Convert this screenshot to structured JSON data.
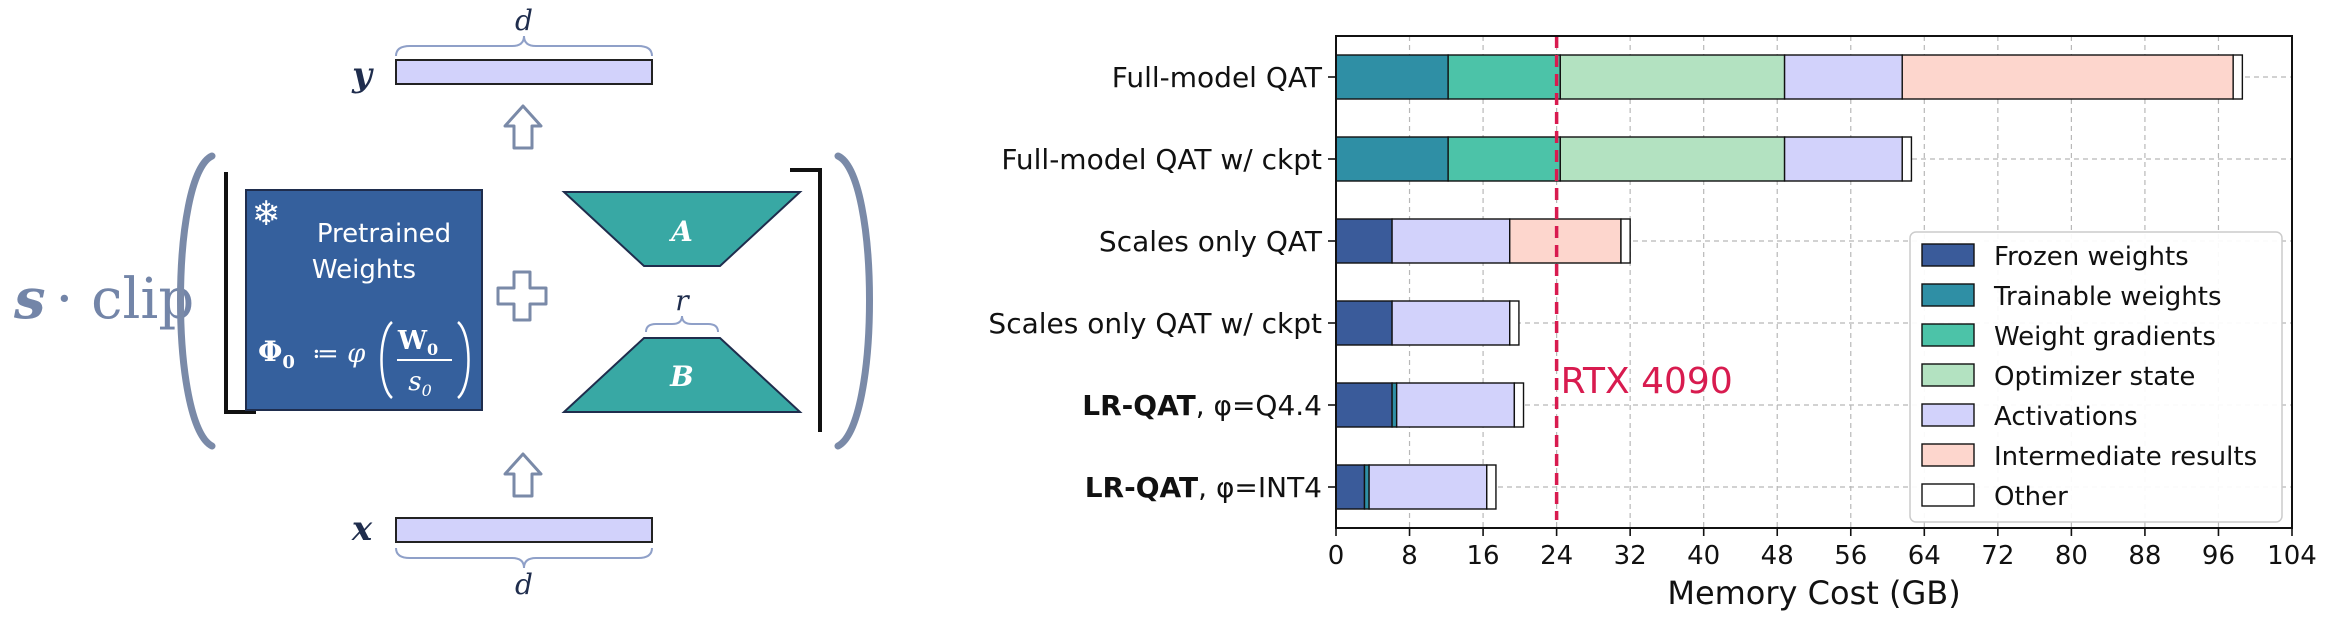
{
  "diagram": {
    "output_label": "y",
    "input_label": "x",
    "dim_top": "d",
    "dim_bottom": "d",
    "rank_label": "r",
    "scale_prefix_s": "s",
    "scale_prefix_rest": "· clip",
    "frozen_icon": "❄",
    "pretrained_line1": "Pretrained",
    "pretrained_line2": "Weights",
    "phi_sym": "Φ",
    "phi_sub": "0",
    "assign": "≔ φ",
    "frac_num": "W",
    "frac_num_sub": "0",
    "frac_den": "s",
    "frac_den_sub": "0",
    "adapter_a": "A",
    "adapter_b": "B",
    "plus_icon": "plus-icon",
    "arrow_icon": "up-arrow-icon"
  },
  "chart_data": {
    "type": "bar",
    "orientation": "horizontal",
    "stacked": true,
    "xlabel": "Memory Cost (GB)",
    "xlim": [
      0,
      104
    ],
    "xticks": [
      0,
      8,
      16,
      24,
      32,
      40,
      48,
      56,
      64,
      72,
      80,
      88,
      96,
      104
    ],
    "grid": true,
    "legend_position": "right",
    "categories": [
      {
        "bold": "",
        "text": "Full-model QAT"
      },
      {
        "bold": "",
        "text": "Full-model QAT w/ ckpt"
      },
      {
        "bold": "",
        "text": "Scales only QAT"
      },
      {
        "bold": "",
        "text": "Scales only QAT w/ ckpt"
      },
      {
        "bold": "LR-QAT",
        "text": ", φ=Q4.4"
      },
      {
        "bold": "LR-QAT",
        "text": ", φ=INT4"
      }
    ],
    "series": [
      {
        "name": "Frozen weights",
        "color": "#3a5b9a",
        "values": [
          0,
          0,
          6.1,
          6.1,
          6.1,
          3.1
        ]
      },
      {
        "name": "Trainable weights",
        "color": "#2f8fa5",
        "values": [
          12.2,
          12.2,
          0,
          0,
          0.5,
          0.5
        ]
      },
      {
        "name": "Weight gradients",
        "color": "#4cc3a8",
        "values": [
          12.2,
          12.2,
          0,
          0,
          0,
          0
        ]
      },
      {
        "name": "Optimizer state",
        "color": "#b3e2c1",
        "values": [
          24.4,
          24.4,
          0,
          0,
          0,
          0
        ]
      },
      {
        "name": "Activations",
        "color": "#d2d2fb",
        "values": [
          12.8,
          12.8,
          12.8,
          12.8,
          12.8,
          12.8
        ]
      },
      {
        "name": "Intermediate results",
        "color": "#fdd6cd",
        "values": [
          36.0,
          0,
          12.1,
          0,
          0,
          0
        ]
      },
      {
        "name": "Other",
        "color": "#ffffff",
        "values": [
          1.0,
          1.0,
          1.0,
          1.0,
          1.0,
          1.0
        ]
      }
    ],
    "reference_line": {
      "x": 24,
      "label": "RTX 4090",
      "color": "#d81b4f"
    }
  }
}
